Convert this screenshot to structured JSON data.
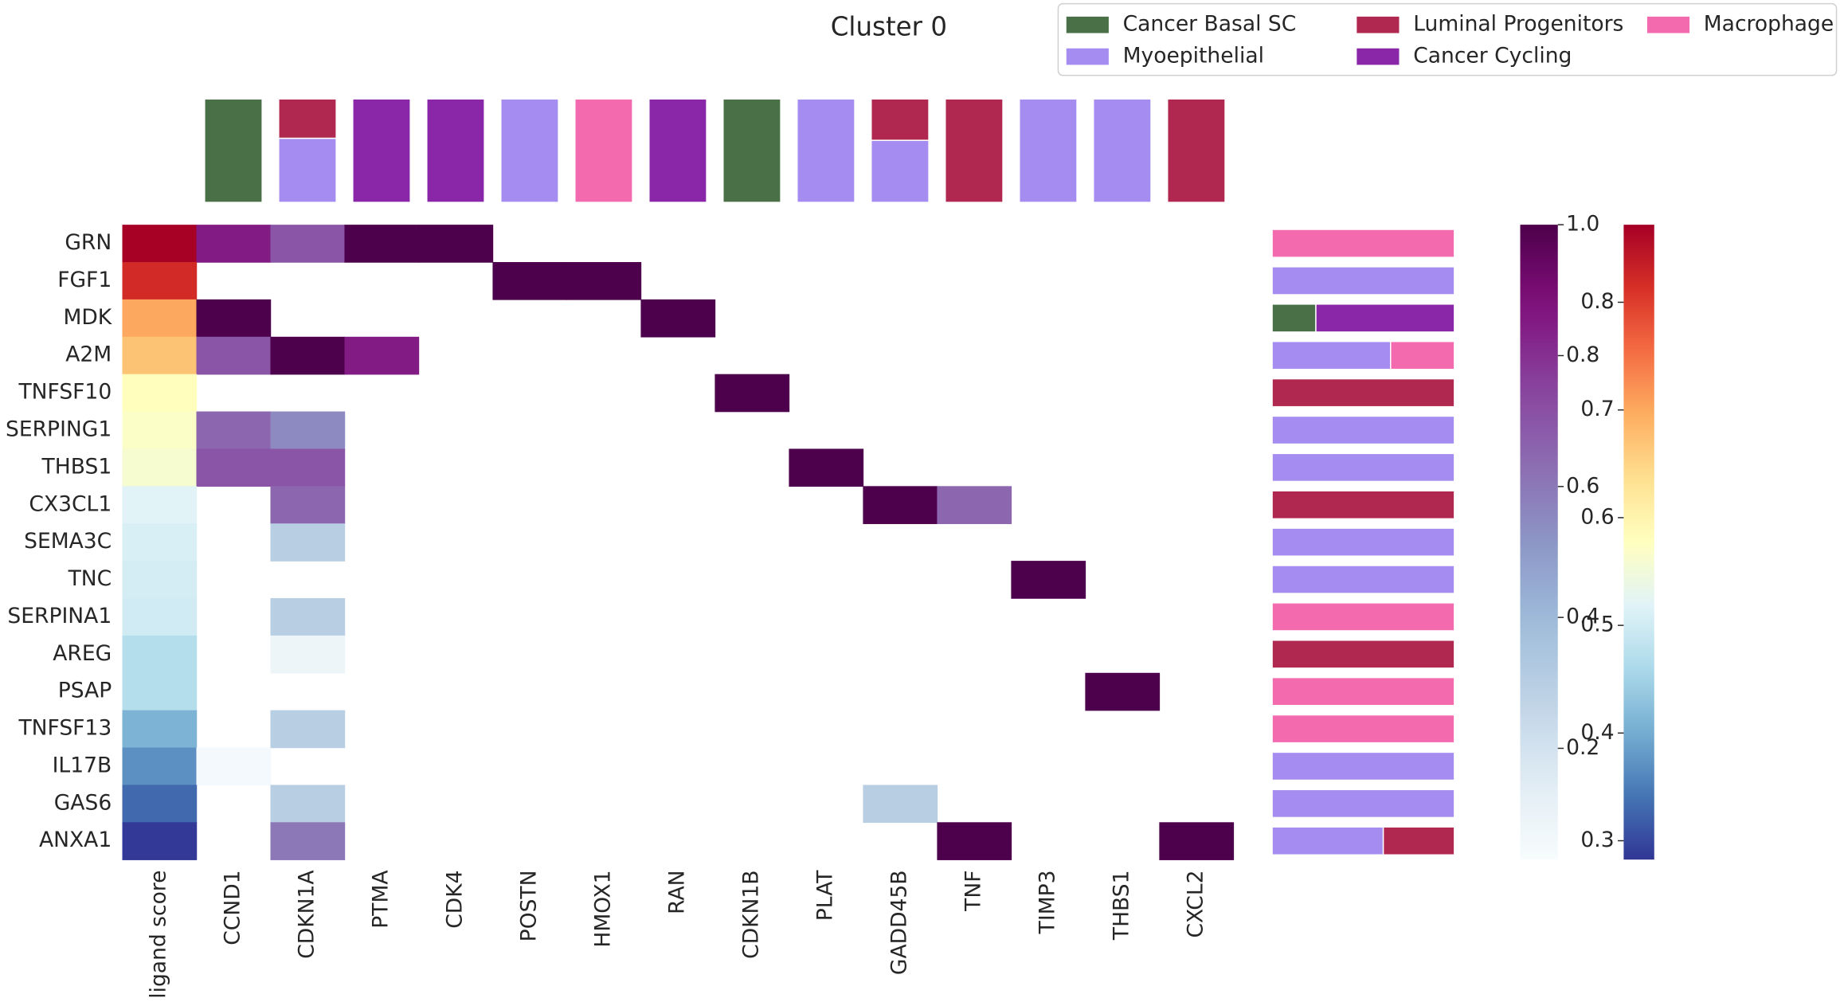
{
  "chart_data": {
    "type": "heatmap",
    "title": "Cluster 0",
    "legend": {
      "names": [
        "Cancer Basal SC",
        "Myoepithelial",
        "Luminal Progenitors",
        "Cancer Cycling",
        "Macrophage"
      ],
      "colors": [
        "#4a7048",
        "#a48cf0",
        "#b0284f",
        "#8a27a8",
        "#f46aae"
      ]
    },
    "score_label": "ligand score",
    "targets": [
      "CCND1",
      "CDKN1A",
      "PTMA",
      "CDK4",
      "POSTN",
      "HMOX1",
      "RAN",
      "CDKN1B",
      "PLAT",
      "GADD45B",
      "TNF",
      "TIMP3",
      "THBS1",
      "CXCL2"
    ],
    "rows": [
      "GRN",
      "FGF1",
      "MDK",
      "A2M",
      "TNFSF10",
      "SERPING1",
      "THBS1",
      "CX3CL1",
      "SEMA3C",
      "TNC",
      "SERPINA1",
      "AREG",
      "PSAP",
      "TNFSF13",
      "IL17B",
      "GAS6",
      "ANXA1"
    ],
    "ligand_score": {
      "values": [
        0.87,
        0.82,
        0.7,
        0.67,
        0.58,
        0.57,
        0.56,
        0.52,
        0.51,
        0.505,
        0.5,
        0.47,
        0.47,
        0.41,
        0.37,
        0.33,
        0.285
      ],
      "ylim": [
        0.2825,
        0.872
      ],
      "yticks": [
        0.3,
        0.4,
        0.5,
        0.6,
        0.7,
        0.8
      ]
    },
    "values": [
      [
        0.85,
        0.7,
        1,
        1,
        null,
        null,
        null,
        null,
        null,
        null,
        null,
        null,
        null,
        null
      ],
      [
        null,
        null,
        null,
        null,
        1,
        1,
        null,
        null,
        null,
        null,
        null,
        null,
        null,
        null
      ],
      [
        1,
        null,
        null,
        null,
        null,
        null,
        1,
        null,
        null,
        null,
        null,
        null,
        null,
        null
      ],
      [
        0.7,
        1,
        0.85,
        null,
        null,
        null,
        null,
        null,
        null,
        null,
        null,
        null,
        null,
        null
      ],
      [
        null,
        null,
        null,
        null,
        null,
        null,
        null,
        1,
        null,
        null,
        null,
        null,
        null,
        null
      ],
      [
        0.65,
        0.55,
        null,
        null,
        null,
        null,
        null,
        null,
        null,
        null,
        null,
        null,
        null,
        null
      ],
      [
        0.7,
        0.7,
        null,
        null,
        null,
        null,
        null,
        null,
        1,
        null,
        null,
        null,
        null,
        null
      ],
      [
        null,
        0.65,
        null,
        null,
        null,
        null,
        null,
        null,
        null,
        1,
        0.65,
        null,
        null,
        null
      ],
      [
        null,
        0.3,
        null,
        null,
        null,
        null,
        null,
        null,
        null,
        null,
        null,
        null,
        null,
        null
      ],
      [
        null,
        null,
        null,
        null,
        null,
        null,
        null,
        null,
        null,
        null,
        null,
        1,
        null,
        null
      ],
      [
        null,
        0.3,
        null,
        null,
        null,
        null,
        null,
        null,
        null,
        null,
        null,
        null,
        null,
        null
      ],
      [
        null,
        0.08,
        null,
        null,
        null,
        null,
        null,
        null,
        null,
        null,
        null,
        null,
        null,
        null
      ],
      [
        null,
        null,
        null,
        null,
        null,
        null,
        null,
        null,
        null,
        null,
        null,
        null,
        1,
        null
      ],
      [
        null,
        0.3,
        null,
        null,
        null,
        null,
        null,
        null,
        null,
        null,
        null,
        null,
        null,
        null
      ],
      [
        0.05,
        null,
        null,
        null,
        null,
        null,
        null,
        null,
        null,
        null,
        null,
        null,
        null,
        null
      ],
      [
        null,
        0.3,
        null,
        null,
        null,
        null,
        null,
        null,
        null,
        0.3,
        null,
        null,
        null,
        null
      ],
      [
        null,
        0.6,
        null,
        null,
        null,
        null,
        null,
        null,
        null,
        null,
        1,
        null,
        null,
        1
      ]
    ],
    "zlim": [
      0.03,
      1
    ],
    "zticks": [
      0.2,
      0.4,
      0.6,
      0.8,
      {
        "value": 1,
        "label": "1.0"
      }
    ],
    "target_composition": [
      [
        1,
        0,
        0,
        0,
        0
      ],
      [
        0,
        0.62,
        0.38,
        0,
        0
      ],
      [
        0,
        0,
        0,
        1,
        0
      ],
      [
        0,
        0,
        0,
        1,
        0
      ],
      [
        0,
        1,
        0,
        0,
        0
      ],
      [
        0,
        0,
        0,
        0,
        1
      ],
      [
        0,
        0,
        0,
        1,
        0
      ],
      [
        1,
        0,
        0,
        0,
        0
      ],
      [
        0,
        1,
        0,
        0,
        0
      ],
      [
        0,
        0.6,
        0.4,
        0,
        0
      ],
      [
        0,
        0,
        1,
        0,
        0
      ],
      [
        0,
        1,
        0,
        0,
        0
      ],
      [
        0,
        1,
        0,
        0,
        0
      ],
      [
        0,
        0,
        1,
        0,
        0
      ]
    ],
    "ligand_composition": [
      [
        0,
        0,
        0,
        0,
        1
      ],
      [
        0,
        1,
        0,
        0,
        0
      ],
      [
        0.24,
        0,
        0,
        0.76,
        0
      ],
      [
        0,
        0.65,
        0,
        0,
        0.35
      ],
      [
        0,
        0,
        1,
        0,
        0
      ],
      [
        0,
        1,
        0,
        0,
        0
      ],
      [
        0,
        1,
        0,
        0,
        0
      ],
      [
        0,
        0,
        1,
        0,
        0
      ],
      [
        0,
        1,
        0,
        0,
        0
      ],
      [
        0,
        1,
        0,
        0,
        0
      ],
      [
        0,
        0,
        0,
        0,
        1
      ],
      [
        0,
        0,
        1,
        0,
        0
      ],
      [
        0,
        0,
        0,
        0,
        1
      ],
      [
        0,
        0,
        0,
        0,
        1
      ],
      [
        0,
        1,
        0,
        0,
        0
      ],
      [
        0,
        1,
        0,
        0,
        0
      ],
      [
        0,
        0.61,
        0.39,
        0,
        0
      ]
    ]
  }
}
